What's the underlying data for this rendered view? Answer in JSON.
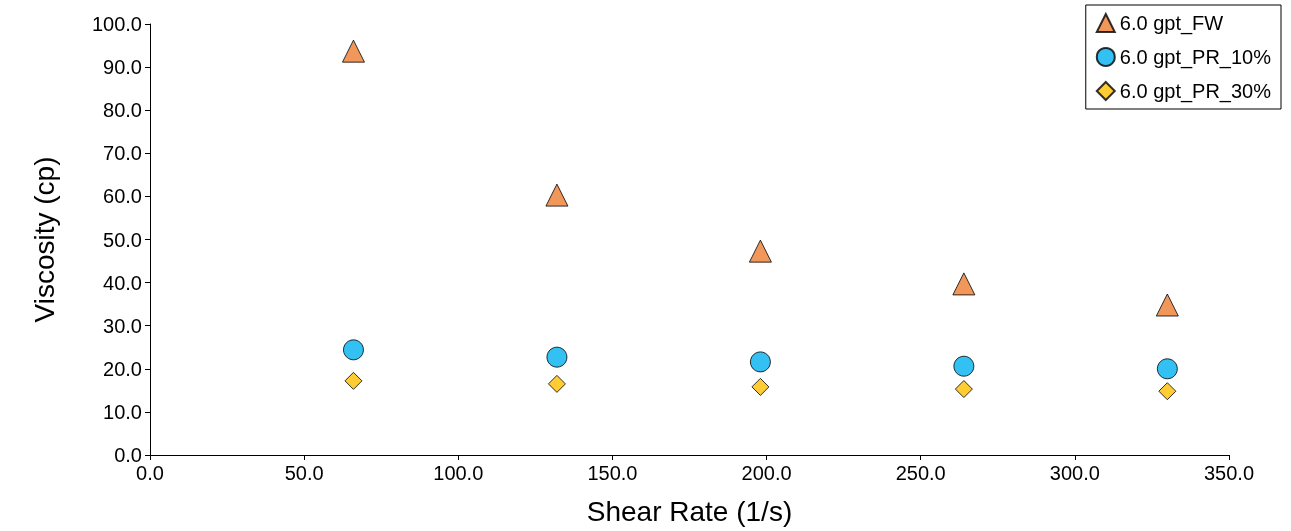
{
  "chart_data": {
    "type": "scatter",
    "xlabel": "Shear Rate (1/s)",
    "ylabel": "Viscosity (cp)",
    "x": [
      66,
      132,
      198,
      264,
      330
    ],
    "series": [
      {
        "name": "6.0 gpt_FW",
        "color": "#ed7d31",
        "marker": "triangle",
        "values": [
          93.7,
          60.3,
          47.3,
          39.7,
          34.8
        ]
      },
      {
        "name": "6.0 gpt_PR_10%",
        "color": "#00b0f0",
        "marker": "circle",
        "values": [
          24.4,
          22.7,
          21.6,
          20.6,
          20.0
        ]
      },
      {
        "name": "6.0 gpt_PR_30%",
        "color": "#ffc000",
        "marker": "diamond",
        "values": [
          17.2,
          16.5,
          15.8,
          15.3,
          14.8
        ]
      }
    ],
    "xlim": [
      0,
      350
    ],
    "xticks": [
      {
        "value": 0,
        "label": "0.0"
      },
      {
        "value": 50,
        "label": "50.0"
      },
      {
        "value": 100,
        "label": "100.0"
      },
      {
        "value": 150,
        "label": "150.0"
      },
      {
        "value": 200,
        "label": "200.0"
      },
      {
        "value": 250,
        "label": "250.0"
      },
      {
        "value": 300,
        "label": "300.0"
      },
      {
        "value": 350,
        "label": "350.0"
      }
    ],
    "ylim": [
      0,
      100
    ],
    "yticks": [
      {
        "value": 0,
        "label": "0.0"
      },
      {
        "value": 10,
        "label": "10.0"
      },
      {
        "value": 20,
        "label": "20.0"
      },
      {
        "value": 30,
        "label": "30.0"
      },
      {
        "value": 40,
        "label": "40.0"
      },
      {
        "value": 50,
        "label": "50.0"
      },
      {
        "value": 60,
        "label": "60.0"
      },
      {
        "value": 70,
        "label": "70.0"
      },
      {
        "value": 80,
        "label": "80.0"
      },
      {
        "value": 90,
        "label": "90.0"
      },
      {
        "value": 100,
        "label": "100.0"
      }
    ],
    "grid": false,
    "legend": "top right"
  }
}
